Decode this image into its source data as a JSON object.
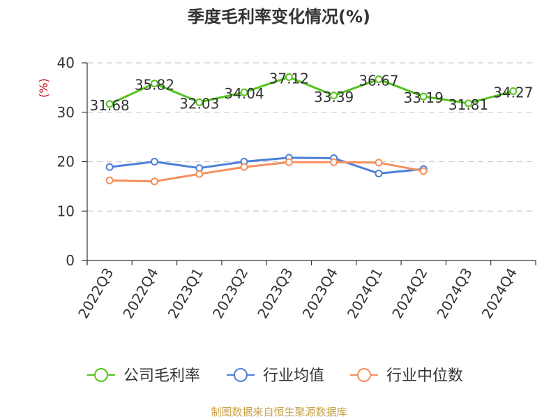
{
  "chart_data": {
    "type": "line",
    "title": "季度毛利率变化情况(%)",
    "ylabel": "(%)",
    "xlabel": "",
    "categories": [
      "2022Q3",
      "2022Q4",
      "2023Q1",
      "2023Q2",
      "2023Q3",
      "2023Q4",
      "2024Q1",
      "2024Q2",
      "2024Q3",
      "2024Q4"
    ],
    "ylim": [
      0,
      40
    ],
    "yticks": [
      0,
      10,
      20,
      30,
      40
    ],
    "grid": true,
    "legend_position": "bottom",
    "series": [
      {
        "name": "公司毛利率",
        "color": "#52c41a",
        "values": [
          31.68,
          35.82,
          32.03,
          34.04,
          37.12,
          33.39,
          36.67,
          33.19,
          31.81,
          34.27
        ],
        "labels": [
          "31.68",
          "35.82",
          "32.03",
          "34.04",
          "37.12",
          "33.39",
          "36.67",
          "33.19",
          "31.81",
          "34.27"
        ]
      },
      {
        "name": "行业均值",
        "color": "#4e7fd9",
        "values": [
          18.9,
          20.0,
          18.7,
          20.0,
          20.8,
          20.7,
          17.6,
          18.5,
          null,
          null
        ]
      },
      {
        "name": "行业中位数",
        "color": "#f58f5c",
        "values": [
          16.2,
          16.0,
          17.5,
          18.9,
          19.9,
          19.9,
          19.8,
          18.1,
          null,
          null
        ]
      }
    ],
    "source": "制图数据来自恒生聚源数据库"
  },
  "colors": {
    "axis": "#333333",
    "grid": "#cccccc",
    "unit": "#cc0000",
    "source": "#c8a24a"
  }
}
